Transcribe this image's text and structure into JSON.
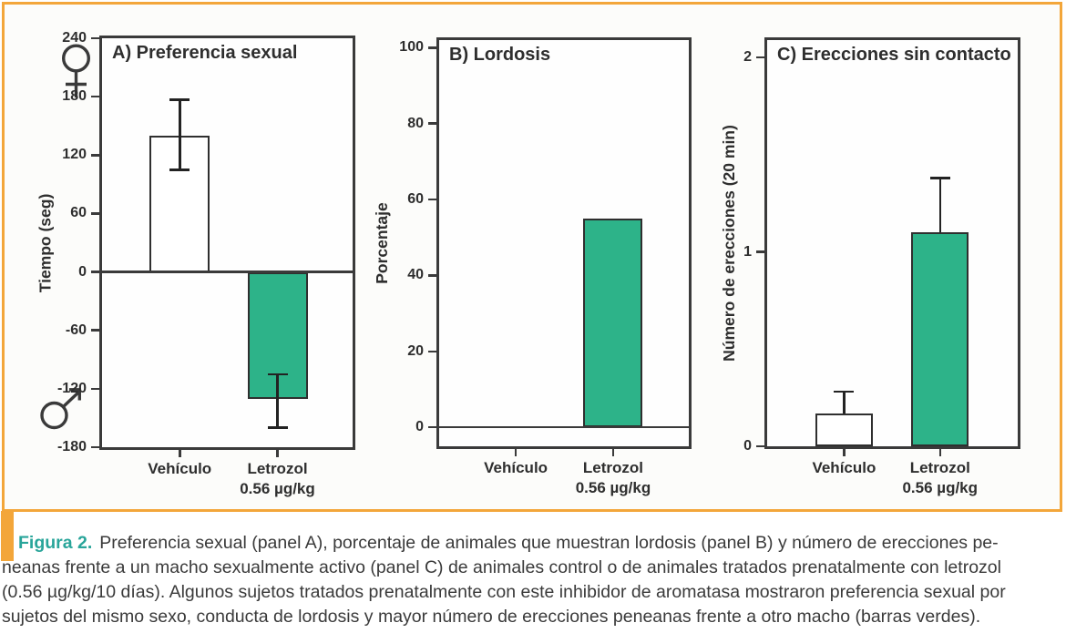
{
  "figure": {
    "caption": {
      "label": "Figura 2.",
      "lines": [
        "Preferencia sexual (panel A), porcentaje de animales que muestran lordosis (panel B) y número de erecciones pe-",
        "neanas frente a un macho sexualmente activo (panel C) de animales control o de animales tratados prenatalmente con letrozol",
        "(0.56 µg/kg/10 días). Algunos sujetos tratados prenatalmente con este inhibidor de aromatasa mostraron preferencia sexual por",
        "sujetos del mismo sexo, conducta de lordosis y mayor número de erecciones peneanas frente a otro macho (barras verdes)."
      ]
    },
    "colors": {
      "accent_orange": "#F3A63A",
      "bar_green": "#2DB389",
      "bar_white": "#FFFFFF",
      "axis_dark": "#3A3A3A",
      "caption_teal": "#29A59A"
    }
  },
  "chart_data": [
    {
      "panel": "A",
      "type": "bar",
      "title": "A) Preferencia sexual",
      "ylabel": "Tiempo (seg)",
      "ylim": [
        -180,
        240
      ],
      "yticks": [
        240,
        180,
        120,
        60,
        0,
        -60,
        -120,
        -180
      ],
      "zero_line": true,
      "grid": false,
      "axis_symbols": {
        "top": "female",
        "bottom": "male"
      },
      "categories": [
        "Vehículo",
        "Letrozol 0.56 µg/kg"
      ],
      "xtick_lines": [
        [
          "Vehículo"
        ],
        [
          "Letrozol",
          "0.56 µg/kg"
        ]
      ],
      "bars": [
        {
          "category": "Vehículo",
          "value": 140,
          "err_top": 177,
          "err_bottom": 105,
          "fill": "#FFFFFF"
        },
        {
          "category": "Letrozol 0.56 µg/kg",
          "value": -130,
          "err_top": -105,
          "err_bottom": -160,
          "fill": "#2DB389"
        }
      ]
    },
    {
      "panel": "B",
      "type": "bar",
      "title": "B) Lordosis",
      "ylabel": "Porcentaje",
      "ylim": [
        -5,
        102
      ],
      "yticks": [
        100,
        80,
        60,
        40,
        20,
        0
      ],
      "zero_line": true,
      "grid": false,
      "categories": [
        "Vehículo",
        "Letrozol 0.56 µg/kg"
      ],
      "xtick_lines": [
        [
          "Vehículo"
        ],
        [
          "Letrozol",
          "0.56 µg/kg"
        ]
      ],
      "bars": [
        {
          "category": "Vehículo",
          "value": 0,
          "fill": "#FFFFFF"
        },
        {
          "category": "Letrozol 0.56 µg/kg",
          "value": 55,
          "fill": "#2DB389"
        }
      ]
    },
    {
      "panel": "C",
      "type": "bar",
      "title": "C) Erecciones sin contacto",
      "ylabel": "Número de erecciones (20 min)",
      "ylim": [
        0,
        2.09
      ],
      "yticks": [
        2,
        1,
        0
      ],
      "zero_line": false,
      "grid": false,
      "categories": [
        "Vehículo",
        "Letrozol 0.56 µg/kg"
      ],
      "xtick_lines": [
        [
          "Vehículo"
        ],
        [
          "Letrozol",
          "0.56 µg/kg"
        ]
      ],
      "bars": [
        {
          "category": "Vehículo",
          "value": 0.17,
          "err_top": 0.28,
          "fill": "#FFFFFF"
        },
        {
          "category": "Letrozol 0.56 µg/kg",
          "value": 1.1,
          "err_top": 1.38,
          "fill": "#2DB389"
        }
      ]
    }
  ]
}
